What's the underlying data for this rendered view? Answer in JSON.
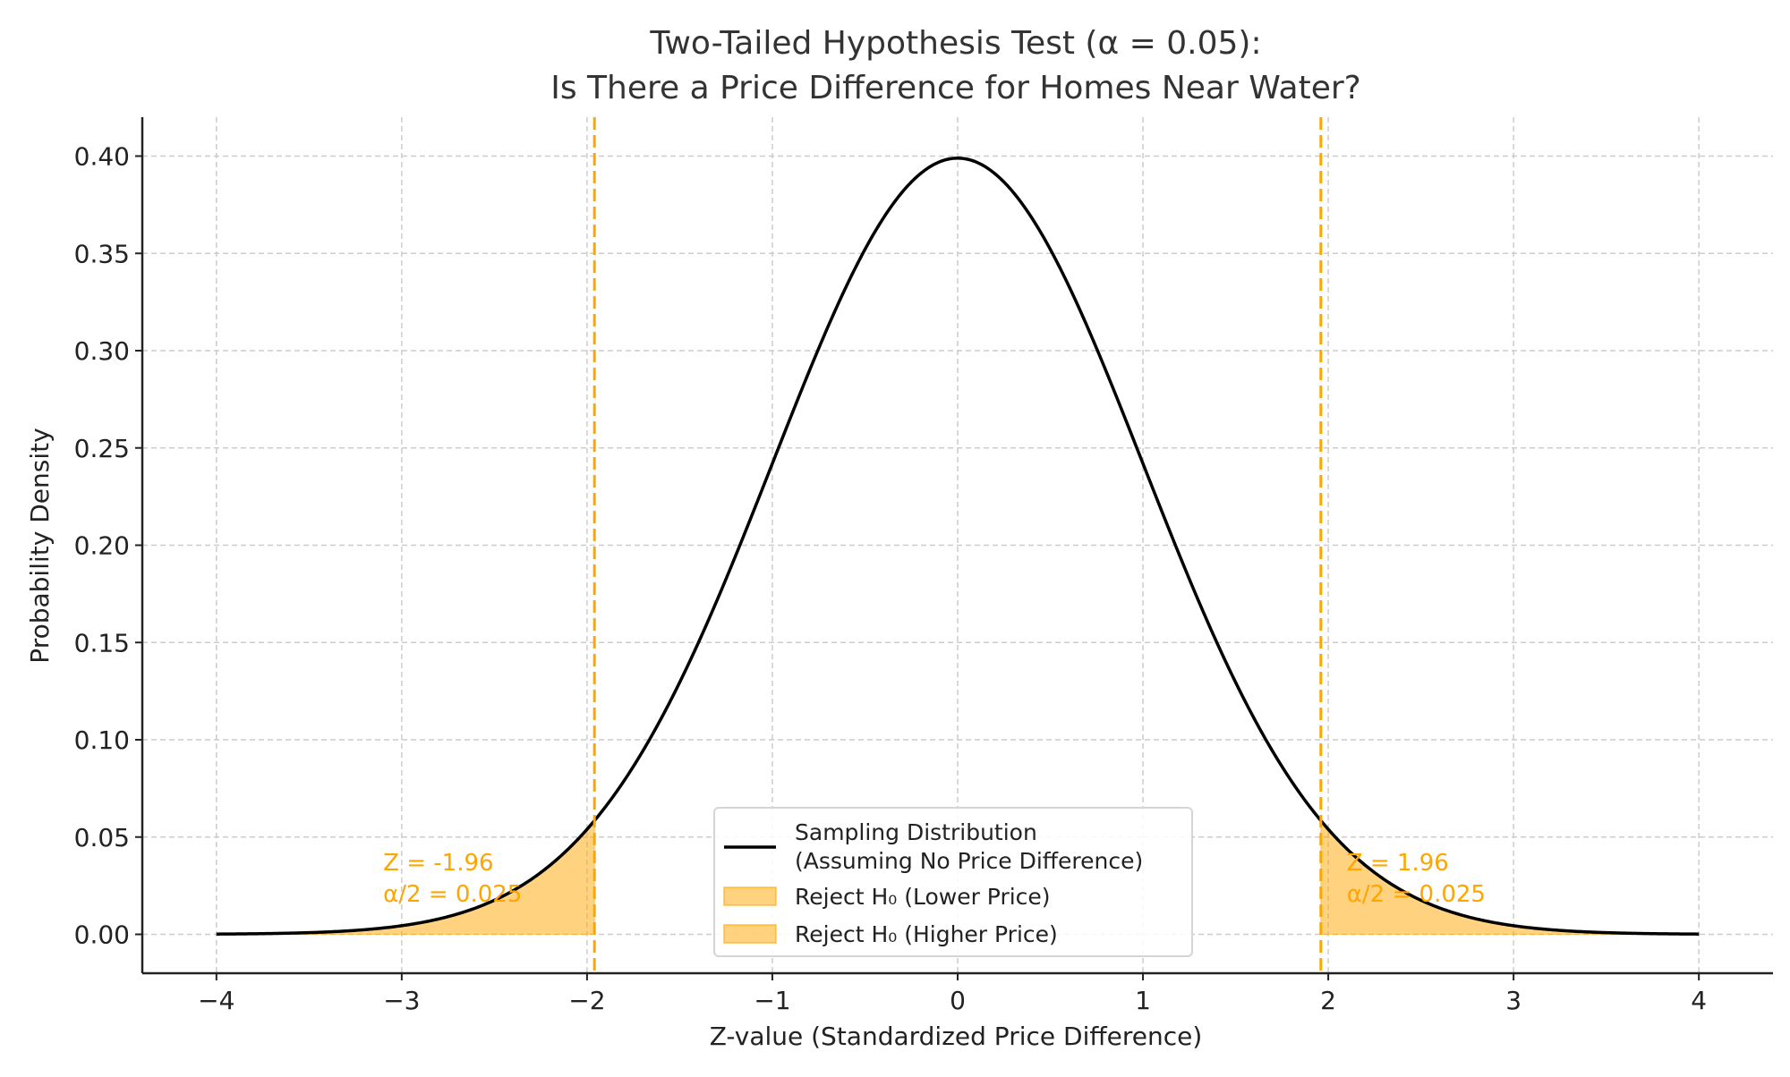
{
  "chart_data": {
    "type": "line",
    "title_line1": "Two-Tailed Hypothesis Test (α = 0.05):",
    "title_line2": "Is There a Price Difference for Homes Near Water?",
    "xlabel": "Z-value (Standardized Price Difference)",
    "ylabel": "Probability Density",
    "xlim": [
      -4.4,
      4.4
    ],
    "ylim": [
      -0.02,
      0.42
    ],
    "x_ticks": [
      -4,
      -3,
      -2,
      -1,
      0,
      1,
      2,
      3,
      4
    ],
    "x_tick_labels": [
      "−4",
      "−3",
      "−2",
      "−1",
      "0",
      "1",
      "2",
      "3",
      "4"
    ],
    "y_ticks": [
      0,
      0.05,
      0.1,
      0.15,
      0.2,
      0.25,
      0.3,
      0.35,
      0.4
    ],
    "y_tick_labels": [
      "0.00",
      "0.05",
      "0.10",
      "0.15",
      "0.20",
      "0.25",
      "0.30",
      "0.35",
      "0.40"
    ],
    "grid": true,
    "curve": {
      "distribution": "standard normal",
      "x_range": [
        -4,
        4
      ],
      "color": "#000000"
    },
    "critical_values": [
      -1.96,
      1.96
    ],
    "rejection_color": "#FFA500",
    "annotations": [
      {
        "line1": "Z = -1.96",
        "line2": "α/2 = 0.025",
        "x": -3.1,
        "y": 0.037
      },
      {
        "line1": "Z = 1.96",
        "line2": "α/2 = 0.025",
        "x": 2.1,
        "y": 0.037
      }
    ],
    "legend": {
      "placement": "lower-center",
      "entries": [
        {
          "label_line1": "Sampling Distribution",
          "label_line2": "(Assuming No Price Difference)",
          "kind": "line"
        },
        {
          "label_line1": "Reject H₀ (Lower Price)",
          "kind": "patch"
        },
        {
          "label_line1": "Reject H₀ (Higher Price)",
          "kind": "patch"
        }
      ]
    }
  }
}
